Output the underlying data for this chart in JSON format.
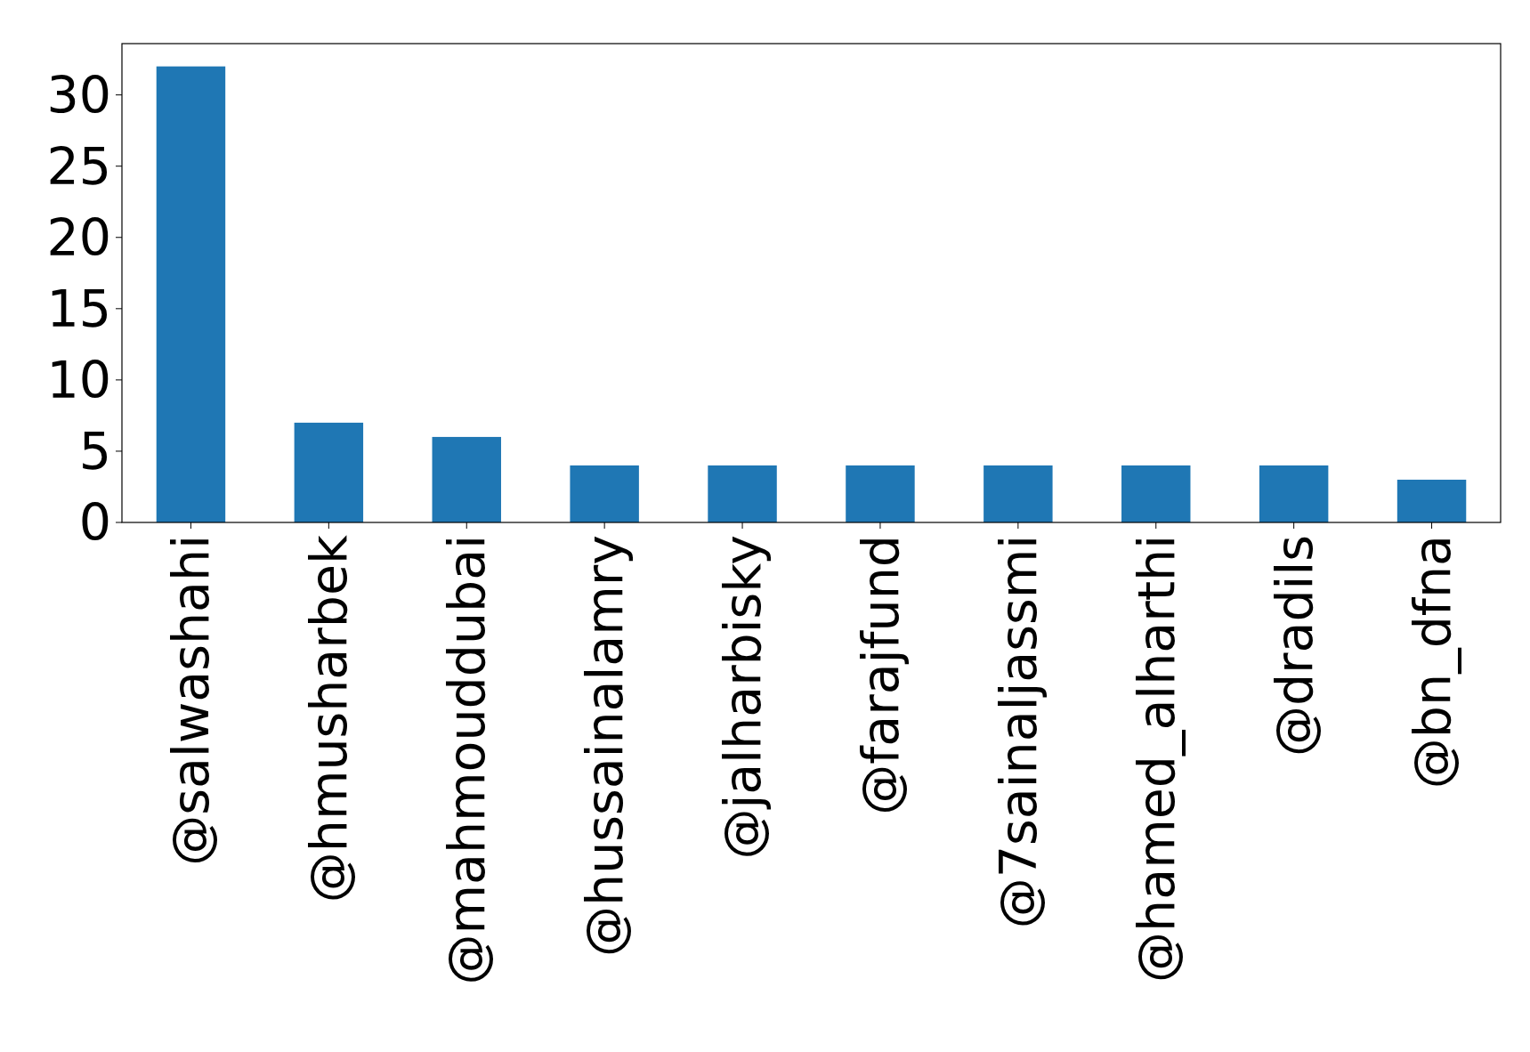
{
  "chart_data": {
    "type": "bar",
    "categories": [
      "@salwashahi",
      "@hmusharbek",
      "@mahmouddubai",
      "@hussainalamry",
      "@jalharbisky",
      "@farajfund",
      "@7sainaljassmi",
      "@hamed_alharthi",
      "@dradils",
      "@bn_dfna"
    ],
    "values": [
      32,
      7,
      6,
      4,
      4,
      4,
      4,
      4,
      4,
      3
    ],
    "color": "#1f77b4",
    "ylim": [
      0,
      33.6
    ],
    "yticks": [
      0,
      5,
      10,
      15,
      20,
      25,
      30
    ],
    "grid": false
  }
}
